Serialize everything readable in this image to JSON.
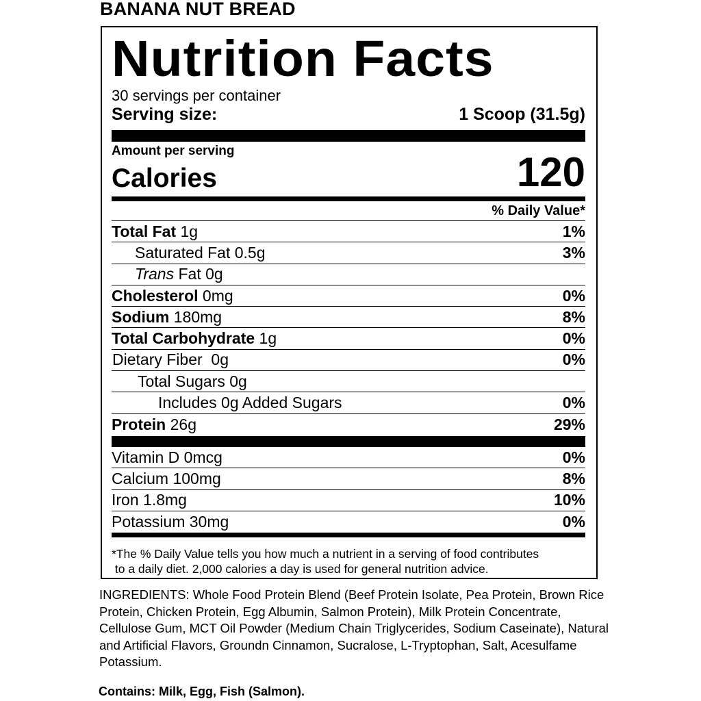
{
  "product_name": "BANANA NUT BREAD",
  "label": {
    "title": "Nutrition Facts",
    "servings": "30 servings per container",
    "serving_size_label": "Serving size:",
    "serving_size_value": "1 Scoop (31.5g)",
    "amount_per_serving": "Amount per serving",
    "calories_label": "Calories",
    "calories_value": "120",
    "dv_header": "% Daily Value*",
    "nutrients": [
      {
        "name": "Total Fat",
        "amount": "1g",
        "dv": "1%"
      },
      {
        "name": "Saturated Fat 0.5g",
        "amount": "",
        "dv": "3%"
      },
      {
        "name": "Trans",
        "amount": "Fat 0g",
        "dv": ""
      },
      {
        "name": "Cholesterol",
        "amount": "0mg",
        "dv": "0%"
      },
      {
        "name": "Sodium",
        "amount": "180mg",
        "dv": "8%"
      },
      {
        "name": "Total Carbohydrate",
        "amount": "1g",
        "dv": "0%"
      },
      {
        "name": "Dietary Fiber  0g",
        "amount": "",
        "dv": "0%"
      },
      {
        "name": "Total Sugars 0g",
        "amount": "",
        "dv": ""
      },
      {
        "name": "Includes 0g Added Sugars",
        "amount": "",
        "dv": "0%"
      },
      {
        "name": "Protein",
        "amount": "26g",
        "dv": "29%"
      }
    ],
    "vitamins": [
      {
        "name": "Vitamin D 0mcg",
        "dv": "0%"
      },
      {
        "name": "Calcium 100mg",
        "dv": "8%"
      },
      {
        "name": "Iron 1.8mg",
        "dv": "10%"
      },
      {
        "name": "Potassium 30mg",
        "dv": "0%"
      }
    ],
    "footnote_1": "*The % Daily Value tells you how much a nutrient in a serving of food contributes",
    "footnote_2": " to a daily diet. 2,000 calories a day is used for general nutrition advice."
  },
  "ingredients": "INGREDIENTS: Whole Food Protein Blend (Beef Protein Isolate, Pea Protein, Brown Rice Protein, Chicken Protein, Egg Albumin, Salmon Protein), Milk Protein Concentrate, Cellulose Gum, MCT Oil Powder (Medium Chain Triglycerides, Sodium Caseinate), Natural and Artificial Flavors, Groundn Cinnamon, Sucralose, L-Tryptophan, Salt, Acesulfame Potassium.",
  "contains": "Contains: Milk, Egg, Fish (Salmon)."
}
